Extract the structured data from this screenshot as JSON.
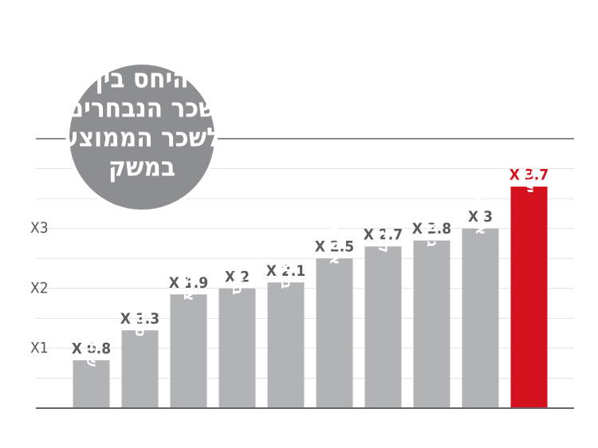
{
  "chart_data": {
    "type": "bar",
    "title_lines": [
      "היחס בין",
      "שכר הנבחרים",
      "לשכר הממוצע",
      "במשק"
    ],
    "categories": [
      "שוודיה",
      "ספרד",
      "צרפת",
      "בלגיה",
      "בריטניה",
      "אוסטרליה",
      "קנדה",
      "גרמניה",
      "ארה\"ב",
      "ישראל"
    ],
    "values": [
      0.8,
      1.3,
      1.9,
      2,
      2.1,
      2.5,
      2.7,
      2.8,
      3,
      3.7
    ],
    "value_labels": [
      "X 0.8",
      "X 1.3",
      "X 1.9",
      "X 2",
      "X 2.1",
      "X 2.5",
      "X 2.7",
      "X 2.8",
      "X 3",
      "X 3.7"
    ],
    "colors": [
      "#b1b3b4",
      "#b1b3b4",
      "#b1b3b4",
      "#b1b3b4",
      "#b1b3b4",
      "#b1b3b4",
      "#b1b3b4",
      "#b1b3b4",
      "#b1b3b4",
      "#d4121e"
    ],
    "label_colors": [
      "#5a5c5e",
      "#5a5c5e",
      "#5a5c5e",
      "#5a5c5e",
      "#5a5c5e",
      "#5a5c5e",
      "#5a5c5e",
      "#5a5c5e",
      "#5a5c5e",
      "#d4121e"
    ],
    "ylim": [
      0,
      4.5
    ],
    "yticks": [
      {
        "value": 1,
        "label": "X1"
      },
      {
        "value": 2,
        "label": "X2"
      },
      {
        "value": 3,
        "label": "X3"
      }
    ],
    "minor_grid": [
      0.5,
      1,
      1.5,
      2,
      2.5,
      3,
      3.5,
      4
    ],
    "grid": true
  }
}
